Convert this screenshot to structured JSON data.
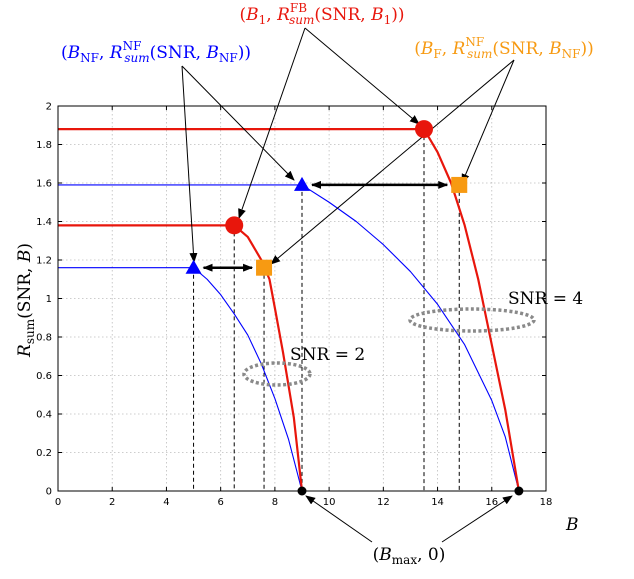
{
  "chart_data": {
    "type": "line",
    "xlabel": "B",
    "ylabel": "R_sum(SNR, B)",
    "xlim": [
      0,
      18
    ],
    "ylim": [
      0,
      2
    ],
    "xticks": [
      "0",
      "2",
      "4",
      "6",
      "8",
      "10",
      "12",
      "14",
      "16",
      "18"
    ],
    "yticks": [
      "0",
      "0.2",
      "0.4",
      "0.6",
      "0.8",
      "1",
      "1.2",
      "1.4",
      "1.6",
      "1.8",
      "2"
    ],
    "grid": true,
    "colors": {
      "nf": "#0000ff",
      "fb": "#e8160c",
      "f_marker": "#f79a12",
      "snr_marker": "#000000",
      "ellipse": "#8a8a8a"
    },
    "series": [
      {
        "role": "nf_snr2",
        "color": "#0000ff",
        "x": [
          0,
          5.0,
          5.5,
          6.0,
          6.5,
          7.0,
          7.5,
          8.0,
          8.5,
          9.0
        ],
        "y": [
          1.16,
          1.16,
          1.1,
          1.02,
          0.92,
          0.81,
          0.66,
          0.48,
          0.27,
          0.0
        ]
      },
      {
        "role": "fb_snr2",
        "color": "#e8160c",
        "x": [
          0,
          6.5,
          7.0,
          7.5,
          7.8,
          8.0,
          8.3,
          8.5,
          8.7,
          9.0
        ],
        "y": [
          1.38,
          1.38,
          1.32,
          1.2,
          1.1,
          0.95,
          0.72,
          0.55,
          0.38,
          0.0
        ]
      },
      {
        "role": "nf_snr4",
        "color": "#0000ff",
        "x": [
          0,
          9.0,
          10.0,
          11.0,
          12.0,
          13.0,
          14.0,
          15.0,
          16.0,
          16.5,
          17.0
        ],
        "y": [
          1.59,
          1.59,
          1.5,
          1.4,
          1.28,
          1.14,
          0.97,
          0.76,
          0.47,
          0.28,
          0.0
        ]
      },
      {
        "role": "fb_snr4",
        "color": "#e8160c",
        "x": [
          0,
          13.5,
          14.0,
          14.5,
          15.0,
          15.5,
          16.0,
          16.5,
          17.0
        ],
        "y": [
          1.88,
          1.88,
          1.76,
          1.6,
          1.38,
          1.1,
          0.76,
          0.42,
          0.0
        ]
      }
    ],
    "markers": [
      {
        "kind": "b1",
        "shape": "circle",
        "color": "#e8160c",
        "x": 6.5,
        "y": 1.38
      },
      {
        "kind": "b1",
        "shape": "circle",
        "color": "#e8160c",
        "x": 13.5,
        "y": 1.88
      },
      {
        "kind": "bnf",
        "shape": "triangle",
        "color": "#0000ff",
        "x": 5.0,
        "y": 1.16
      },
      {
        "kind": "bnf",
        "shape": "triangle",
        "color": "#0000ff",
        "x": 9.0,
        "y": 1.59
      },
      {
        "kind": "bf",
        "shape": "square",
        "color": "#f79a12",
        "x": 7.6,
        "y": 1.16
      },
      {
        "kind": "bf",
        "shape": "square",
        "color": "#f79a12",
        "x": 14.8,
        "y": 1.59
      },
      {
        "kind": "bmax",
        "shape": "dot",
        "color": "#000000",
        "x": 9.0,
        "y": 0.0
      },
      {
        "kind": "bmax",
        "shape": "dot",
        "color": "#000000",
        "x": 17.0,
        "y": 0.0
      }
    ],
    "drop_lines_x": [
      5.0,
      6.5,
      7.6,
      9.0,
      13.5,
      14.8
    ],
    "double_arrows": [
      {
        "x1": 5.0,
        "x2": 7.6,
        "y": 1.16
      },
      {
        "x1": 9.0,
        "x2": 14.8,
        "y": 1.59
      }
    ],
    "annotations": {
      "fb": "(B₁, R^FB_sum(SNR, B₁))",
      "nf": "(B_NF, R^NF_sum(SNR, B_NF))",
      "f": "(B_F, R^NF_sum(SNR, B_NF))",
      "bmax": "(B_max, 0)",
      "snr2": "SNR = 2",
      "snr4": "SNR = 4"
    }
  }
}
